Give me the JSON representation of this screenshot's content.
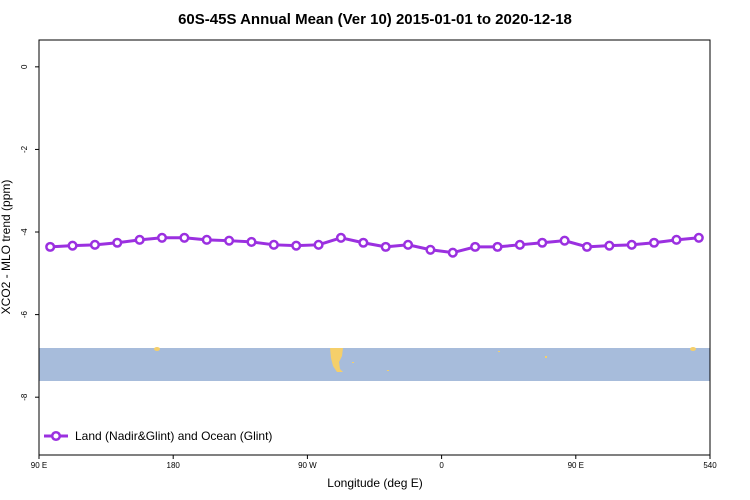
{
  "chart_data": {
    "type": "line",
    "title": "60S-45S Annual Mean (Ver 10)   2015-01-01 to 2020-12-18",
    "x_label": "Longitude (deg E)",
    "y_label": "XCO2 - MLO trend (ppm)",
    "xlim": [
      90,
      540
    ],
    "ylim": [
      -9.4,
      0.65
    ],
    "xticks": [
      {
        "value": 90,
        "label": "90 E"
      },
      180,
      {
        "value": 270,
        "label": "90 W"
      },
      {
        "value": 360,
        "label": "0"
      },
      {
        "value": 450,
        "label": "90 E"
      },
      540
    ],
    "yticks": [
      0,
      -2,
      -4,
      -6,
      -8
    ],
    "x": [
      97.5,
      112.5,
      127.5,
      142.5,
      157.5,
      172.5,
      187.5,
      202.5,
      217.5,
      232.5,
      247.5,
      262.5,
      277.5,
      292.5,
      307.5,
      322.5,
      337.5,
      352.5,
      367.5,
      382.5,
      397.5,
      412.5,
      427.5,
      442.5,
      457.5,
      472.5,
      487.5,
      502.5,
      517.5,
      532.5
    ],
    "legend": "bottom-left",
    "series": [
      {
        "name": "Land (Nadir&Glint) and Ocean (Glint)",
        "color": "#9b30e0",
        "values": [
          -4.36,
          -4.33,
          -4.31,
          -4.26,
          -4.19,
          -4.14,
          -4.14,
          -4.19,
          -4.21,
          -4.24,
          -4.31,
          -4.33,
          -4.31,
          -4.14,
          -4.26,
          -4.36,
          -4.31,
          -4.43,
          -4.5,
          -4.36,
          -4.36,
          -4.31,
          -4.26,
          -4.21,
          -4.36,
          -4.33,
          -4.31,
          -4.26,
          -4.19,
          -4.14
        ]
      }
    ]
  }
}
